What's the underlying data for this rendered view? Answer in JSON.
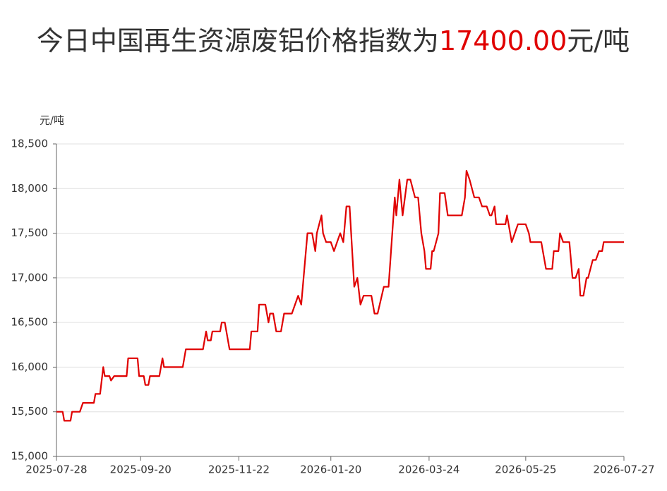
{
  "chart_data": {
    "type": "line",
    "title_prefix": "今日中国再生资源废铝价格指数为",
    "title_value": "17400.00",
    "title_suffix": "元/吨",
    "ylabel": "元/吨",
    "xlim": [
      "2025-07-28",
      "2026-07-27"
    ],
    "xticks": [
      "2025-07-28",
      "2025-09-20",
      "2025-11-22",
      "2026-01-20",
      "2026-03-24",
      "2026-05-25",
      "2026-07-27"
    ],
    "ylim": [
      15000,
      18500
    ],
    "yticks": [
      {
        "value": 15000,
        "label": "15,000"
      },
      {
        "value": 15500,
        "label": "15,500"
      },
      {
        "value": 16000,
        "label": "16,000"
      },
      {
        "value": 16500,
        "label": "16,500"
      },
      {
        "value": 17000,
        "label": "17,000"
      },
      {
        "value": 17500,
        "label": "17,500"
      },
      {
        "value": 18000,
        "label": "18,000"
      },
      {
        "value": 18500,
        "label": "18,500"
      }
    ],
    "grid": true,
    "series": [
      {
        "name": "废铝价格指数",
        "color": "#e00000",
        "x": [
          "2025-07-28",
          "2025-08-01",
          "2025-08-02",
          "2025-08-06",
          "2025-08-07",
          "2025-08-12",
          "2025-08-14",
          "2025-08-21",
          "2025-08-22",
          "2025-08-25",
          "2025-08-27",
          "2025-08-28",
          "2025-08-31",
          "2025-09-01",
          "2025-09-03",
          "2025-09-11",
          "2025-09-12",
          "2025-09-18",
          "2025-09-19",
          "2025-09-22",
          "2025-09-23",
          "2025-09-25",
          "2025-09-26",
          "2025-10-02",
          "2025-10-04",
          "2025-10-05",
          "2025-10-17",
          "2025-10-19",
          "2025-10-30",
          "2025-11-01",
          "2025-11-02",
          "2025-11-04",
          "2025-11-05",
          "2025-11-10",
          "2025-11-11",
          "2025-11-13",
          "2025-11-16",
          "2025-11-29",
          "2025-11-30",
          "2025-12-04",
          "2025-12-05",
          "2025-12-09",
          "2025-12-11",
          "2025-12-12",
          "2025-12-14",
          "2025-12-16",
          "2025-12-19",
          "2025-12-21",
          "2025-12-26",
          "2025-12-30",
          "2026-01-01",
          "2026-01-05",
          "2026-01-08",
          "2026-01-10",
          "2026-01-11",
          "2026-01-14",
          "2026-01-15",
          "2026-01-17",
          "2026-01-20",
          "2026-01-22",
          "2026-01-24",
          "2026-01-26",
          "2026-01-28",
          "2026-01-30",
          "2026-02-01",
          "2026-02-03",
          "2026-02-04",
          "2026-02-06",
          "2026-02-08",
          "2026-02-10",
          "2026-02-15",
          "2026-02-17",
          "2026-02-19",
          "2026-02-23",
          "2026-02-26",
          "2026-02-28",
          "2026-03-02",
          "2026-03-03",
          "2026-03-05",
          "2026-03-07",
          "2026-03-10",
          "2026-03-12",
          "2026-03-15",
          "2026-03-17",
          "2026-03-19",
          "2026-03-21",
          "2026-03-22",
          "2026-03-25",
          "2026-03-26",
          "2026-03-27",
          "2026-03-30",
          "2026-03-31",
          "2026-04-03",
          "2026-04-05",
          "2026-04-14",
          "2026-04-16",
          "2026-04-17",
          "2026-04-19",
          "2026-04-22",
          "2026-04-25",
          "2026-04-27",
          "2026-04-30",
          "2026-05-02",
          "2026-05-03",
          "2026-05-05",
          "2026-05-06",
          "2026-05-12",
          "2026-05-13",
          "2026-05-15",
          "2026-05-16",
          "2026-05-18",
          "2026-05-20",
          "2026-05-25",
          "2026-05-27",
          "2026-05-28",
          "2026-06-04",
          "2026-06-05",
          "2026-06-07",
          "2026-06-11",
          "2026-06-12",
          "2026-06-15",
          "2026-06-16",
          "2026-06-18",
          "2026-06-22",
          "2026-06-24",
          "2026-06-26",
          "2026-06-28",
          "2026-06-29",
          "2026-07-01",
          "2026-07-03",
          "2026-07-04",
          "2026-07-07",
          "2026-07-09",
          "2026-07-11",
          "2026-07-13",
          "2026-07-14",
          "2026-07-27"
        ],
        "values": [
          15500,
          15500,
          15400,
          15400,
          15500,
          15500,
          15600,
          15600,
          15700,
          15700,
          16000,
          15900,
          15900,
          15850,
          15900,
          15900,
          16100,
          16100,
          15900,
          15900,
          15800,
          15800,
          15900,
          15900,
          16100,
          16000,
          16000,
          16200,
          16200,
          16400,
          16300,
          16300,
          16400,
          16400,
          16500,
          16500,
          16200,
          16200,
          16400,
          16400,
          16700,
          16700,
          16500,
          16600,
          16600,
          16400,
          16400,
          16600,
          16600,
          16800,
          16700,
          17500,
          17500,
          17300,
          17500,
          17700,
          17500,
          17400,
          17400,
          17300,
          17400,
          17500,
          17400,
          17800,
          17800,
          17200,
          16900,
          17000,
          16700,
          16800,
          16800,
          16600,
          16600,
          16900,
          16900,
          17400,
          17900,
          17700,
          18100,
          17700,
          18100,
          18100,
          17900,
          17900,
          17500,
          17300,
          17100,
          17100,
          17300,
          17300,
          17500,
          17950,
          17950,
          17700,
          17700,
          17900,
          18200,
          18100,
          17900,
          17900,
          17800,
          17800,
          17700,
          17700,
          17800,
          17600,
          17600,
          17700,
          17500,
          17400,
          17500,
          17600,
          17600,
          17500,
          17400,
          17400,
          17300,
          17100,
          17100,
          17300,
          17300,
          17500,
          17400,
          17400,
          17000,
          17000,
          17100,
          16800,
          16800,
          17000,
          17000,
          17200,
          17200,
          17300,
          17300,
          17400,
          17400
        ]
      }
    ]
  }
}
